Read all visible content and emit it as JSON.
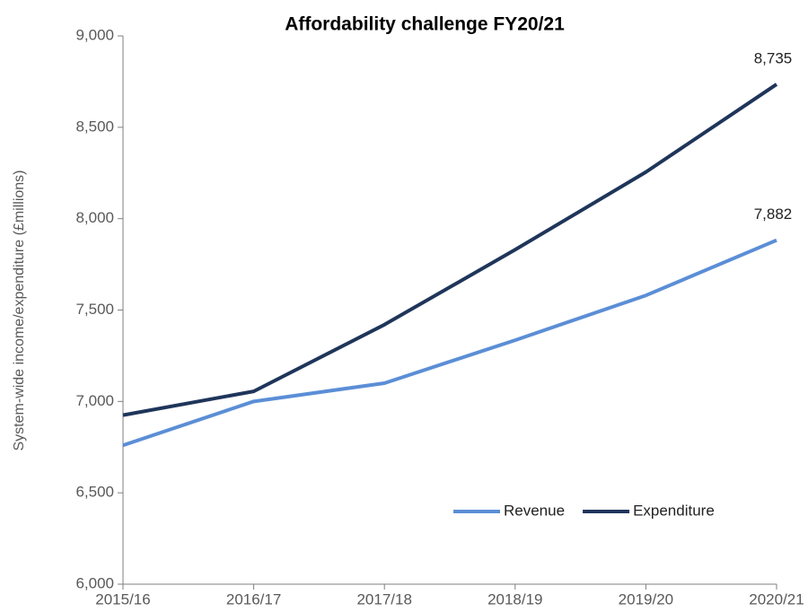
{
  "chart_data": {
    "type": "line",
    "title": "Affordability  challenge  FY20/21",
    "y_label": "System-wide income/expenditure (£millions)",
    "categories": [
      "2015/16",
      "2016/17",
      "2017/18",
      "2018/19",
      "2019/20",
      "2020/21"
    ],
    "series": [
      {
        "name": "Revenue",
        "color": "#5b8ed6",
        "values": [
          6760,
          7000,
          7100,
          7335,
          7580,
          7882
        ],
        "value_labels": [
          null,
          null,
          null,
          null,
          null,
          "7,882"
        ]
      },
      {
        "name": "Expenditure",
        "color": "#1f355a",
        "values": [
          6925,
          7055,
          7420,
          7830,
          8255,
          8735
        ],
        "value_labels": [
          null,
          null,
          null,
          null,
          null,
          "8,735"
        ]
      }
    ],
    "ylim": [
      6000,
      9000
    ],
    "yticks": [
      {
        "value": 6000,
        "label": "6,000"
      },
      {
        "value": 6500,
        "label": "6,500"
      },
      {
        "value": 7000,
        "label": "7,000"
      },
      {
        "value": 7500,
        "label": "7,500"
      },
      {
        "value": 8000,
        "label": "8,000"
      },
      {
        "value": 8500,
        "label": "8,500"
      },
      {
        "value": 9000,
        "label": "9,000"
      }
    ],
    "grid": false,
    "legend": "lower right"
  }
}
